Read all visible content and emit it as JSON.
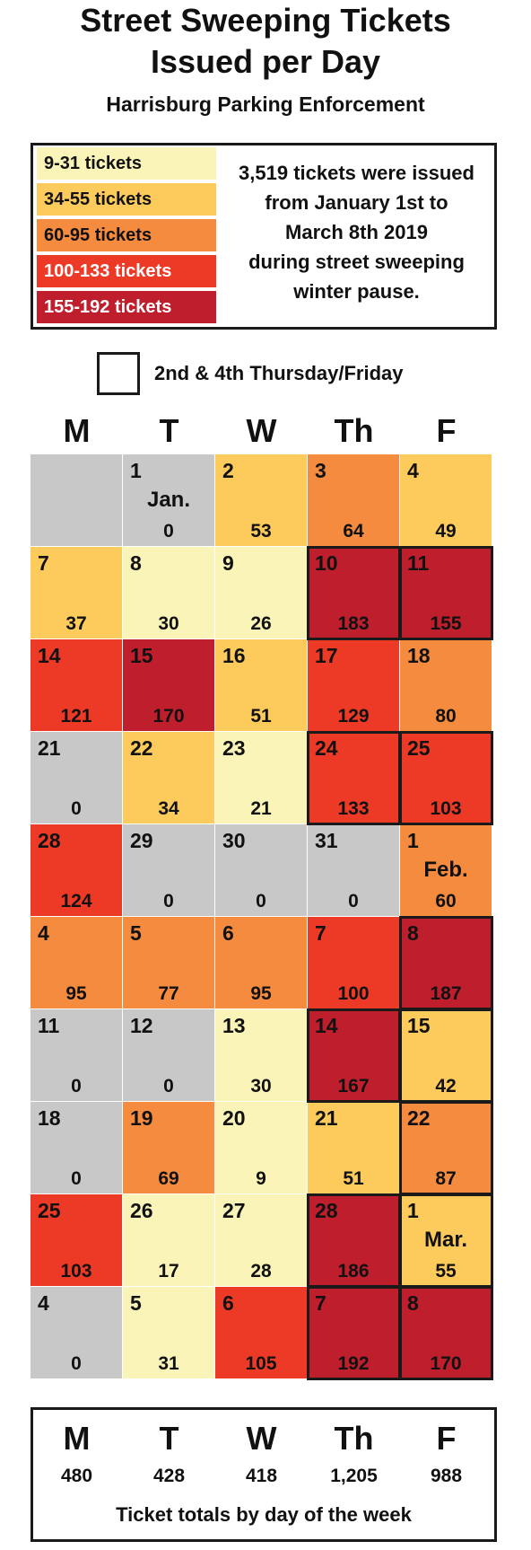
{
  "title_line1": "Street Sweeping Tickets",
  "title_line2": "Issued per Day",
  "subtitle": "Harrisburg Parking Enforcement",
  "legend": [
    {
      "label": "9-31 tickets",
      "color": "#faf4b8",
      "text": "dark"
    },
    {
      "label": "34-55 tickets",
      "color": "#fdcb5c",
      "text": "dark"
    },
    {
      "label": "60-95 tickets",
      "color": "#f48b3f",
      "text": "dark"
    },
    {
      "label": "100-133 tickets",
      "color": "#ec3a26",
      "text": "light"
    },
    {
      "label": "155-192 tickets",
      "color": "#bf1f2d",
      "text": "light"
    }
  ],
  "zero_color": "#c8c8c8",
  "legend_note": [
    "3,519 tickets were issued",
    "from January 1st to",
    "March 8th 2019",
    "during street sweeping",
    "winter pause."
  ],
  "marker_label": "2nd & 4th Thursday/Friday",
  "weekdays": [
    "M",
    "T",
    "W",
    "Th",
    "F"
  ],
  "chart_data": {
    "type": "heatmap",
    "columns": [
      "M",
      "T",
      "W",
      "Th",
      "F"
    ],
    "weeks": [
      [
        {
          "day": "",
          "value": null
        },
        {
          "day": "1",
          "month": "Jan.",
          "value": 0
        },
        {
          "day": "2",
          "value": 53
        },
        {
          "day": "3",
          "value": 64
        },
        {
          "day": "4",
          "value": 49
        }
      ],
      [
        {
          "day": "7",
          "value": 37
        },
        {
          "day": "8",
          "value": 30
        },
        {
          "day": "9",
          "value": 26
        },
        {
          "day": "10",
          "value": 183,
          "marked": true
        },
        {
          "day": "11",
          "value": 155,
          "marked": true
        }
      ],
      [
        {
          "day": "14",
          "value": 121
        },
        {
          "day": "15",
          "value": 170
        },
        {
          "day": "16",
          "value": 51
        },
        {
          "day": "17",
          "value": 129
        },
        {
          "day": "18",
          "value": 80
        }
      ],
      [
        {
          "day": "21",
          "value": 0
        },
        {
          "day": "22",
          "value": 34
        },
        {
          "day": "23",
          "value": 21
        },
        {
          "day": "24",
          "value": 133,
          "marked": true
        },
        {
          "day": "25",
          "value": 103,
          "marked": true
        }
      ],
      [
        {
          "day": "28",
          "value": 124
        },
        {
          "day": "29",
          "value": 0
        },
        {
          "day": "30",
          "value": 0
        },
        {
          "day": "31",
          "value": 0
        },
        {
          "day": "1",
          "month": "Feb.",
          "value": 60
        }
      ],
      [
        {
          "day": "4",
          "value": 95
        },
        {
          "day": "5",
          "value": 77
        },
        {
          "day": "6",
          "value": 95
        },
        {
          "day": "7",
          "value": 100
        },
        {
          "day": "8",
          "value": 187,
          "marked": true
        }
      ],
      [
        {
          "day": "11",
          "value": 0
        },
        {
          "day": "12",
          "value": 0
        },
        {
          "day": "13",
          "value": 30
        },
        {
          "day": "14",
          "value": 167,
          "marked": true
        },
        {
          "day": "15",
          "value": 42,
          "marked": true
        }
      ],
      [
        {
          "day": "18",
          "value": 0
        },
        {
          "day": "19",
          "value": 69
        },
        {
          "day": "20",
          "value": 9
        },
        {
          "day": "21",
          "value": 51
        },
        {
          "day": "22",
          "value": 87,
          "marked": true
        }
      ],
      [
        {
          "day": "25",
          "value": 103
        },
        {
          "day": "26",
          "value": 17
        },
        {
          "day": "27",
          "value": 28
        },
        {
          "day": "28",
          "value": 186,
          "marked": true
        },
        {
          "day": "1",
          "month": "Mar.",
          "value": 55,
          "marked": true
        }
      ],
      [
        {
          "day": "4",
          "value": 0
        },
        {
          "day": "5",
          "value": 31
        },
        {
          "day": "6",
          "value": 105
        },
        {
          "day": "7",
          "value": 192,
          "marked": true
        },
        {
          "day": "8",
          "value": 170,
          "marked": true
        }
      ]
    ]
  },
  "totals": {
    "days": [
      "M",
      "T",
      "W",
      "Th",
      "F"
    ],
    "values": [
      "480",
      "428",
      "418",
      "1,205",
      "988"
    ],
    "caption": "Ticket totals by day of the week"
  }
}
